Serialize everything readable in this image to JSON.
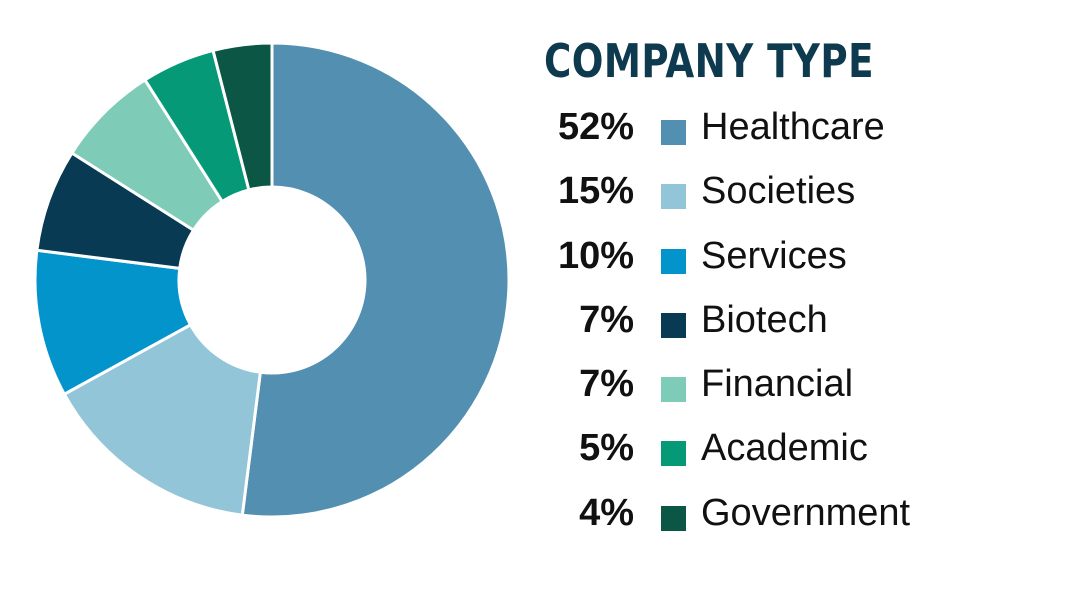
{
  "chart_data": {
    "type": "pie",
    "variant": "donut",
    "title": "COMPANY TYPE",
    "legend_position": "right",
    "slices": [
      {
        "label": "Healthcare",
        "value": 52,
        "value_label": "52%",
        "color": "#528fb1"
      },
      {
        "label": "Societies",
        "value": 15,
        "value_label": "15%",
        "color": "#93c5d9"
      },
      {
        "label": "Services",
        "value": 10,
        "value_label": "10%",
        "color": "#0394cc"
      },
      {
        "label": "Biotech",
        "value": 7,
        "value_label": "7%",
        "color": "#083a54"
      },
      {
        "label": "Financial",
        "value": 7,
        "value_label": "7%",
        "color": "#7ecbb7"
      },
      {
        "label": "Academic",
        "value": 5,
        "value_label": "5%",
        "color": "#069977"
      },
      {
        "label": "Government",
        "value": 4,
        "value_label": "4%",
        "color": "#0b5645"
      }
    ]
  },
  "colors": {
    "title": "#0d3a4e",
    "text": "#111111",
    "slice_border": "#ffffff"
  }
}
